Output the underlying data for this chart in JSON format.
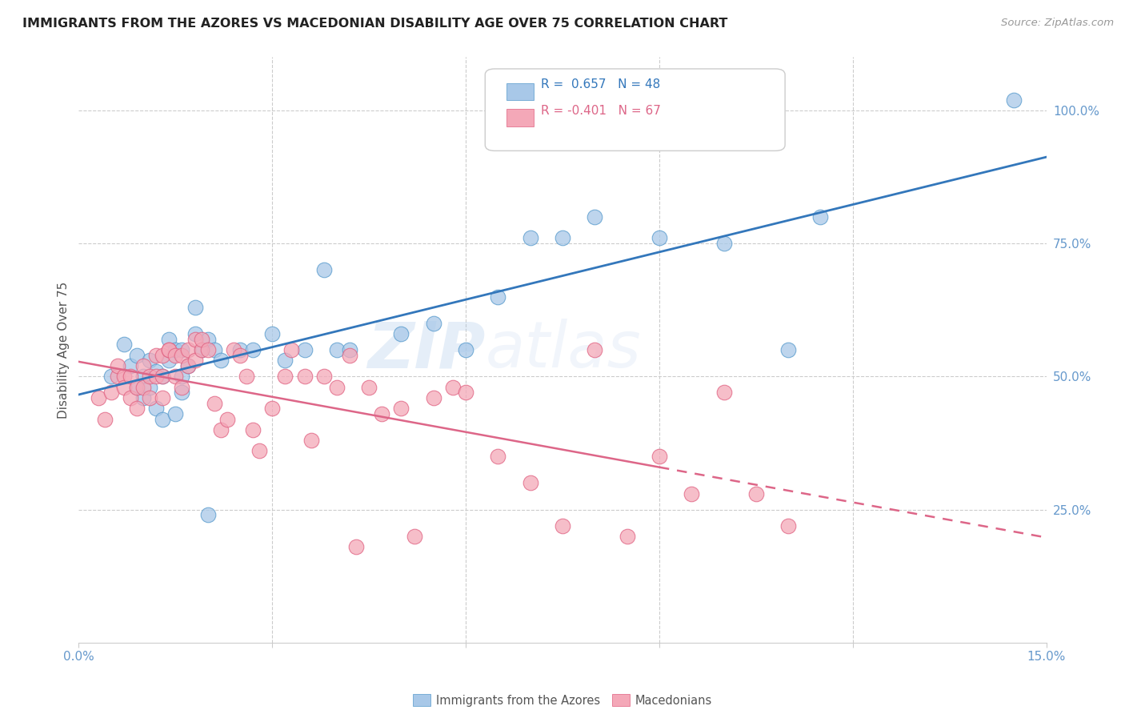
{
  "title": "IMMIGRANTS FROM THE AZORES VS MACEDONIAN DISABILITY AGE OVER 75 CORRELATION CHART",
  "source": "Source: ZipAtlas.com",
  "ylabel": "Disability Age Over 75",
  "y_ticks": [
    0.25,
    0.5,
    0.75,
    1.0
  ],
  "y_tick_labels": [
    "25.0%",
    "50.0%",
    "75.0%",
    "100.0%"
  ],
  "xlim": [
    0.0,
    0.15
  ],
  "ylim": [
    0.0,
    1.1
  ],
  "legend_r1": "R =  0.657   N = 48",
  "legend_r2": "R = -0.401   N = 67",
  "legend_label1": "Immigrants from the Azores",
  "legend_label2": "Macedonians",
  "blue_fill": "#a8c8e8",
  "blue_edge": "#5599cc",
  "pink_fill": "#f4a8b8",
  "pink_edge": "#e06080",
  "blue_line_color": "#3377bb",
  "pink_line_color": "#dd6688",
  "title_color": "#222222",
  "source_color": "#999999",
  "axis_label_color": "#555555",
  "tick_color": "#6699cc",
  "background_color": "#ffffff",
  "grid_color": "#cccccc",
  "watermark_zip": "ZIP",
  "watermark_atlas": "atlas",
  "azores_x": [
    0.005,
    0.007,
    0.008,
    0.009,
    0.009,
    0.01,
    0.01,
    0.011,
    0.011,
    0.012,
    0.012,
    0.013,
    0.013,
    0.014,
    0.014,
    0.015,
    0.015,
    0.016,
    0.016,
    0.016,
    0.017,
    0.018,
    0.018,
    0.019,
    0.02,
    0.02,
    0.021,
    0.022,
    0.025,
    0.027,
    0.03,
    0.032,
    0.035,
    0.038,
    0.04,
    0.042,
    0.05,
    0.055,
    0.06,
    0.065,
    0.07,
    0.075,
    0.08,
    0.09,
    0.1,
    0.11,
    0.115,
    0.145
  ],
  "azores_y": [
    0.5,
    0.56,
    0.52,
    0.48,
    0.54,
    0.5,
    0.46,
    0.53,
    0.48,
    0.51,
    0.44,
    0.5,
    0.42,
    0.57,
    0.53,
    0.55,
    0.43,
    0.55,
    0.5,
    0.47,
    0.52,
    0.63,
    0.58,
    0.55,
    0.57,
    0.24,
    0.55,
    0.53,
    0.55,
    0.55,
    0.58,
    0.53,
    0.55,
    0.7,
    0.55,
    0.55,
    0.58,
    0.6,
    0.55,
    0.65,
    0.76,
    0.76,
    0.8,
    0.76,
    0.75,
    0.55,
    0.8,
    1.02
  ],
  "macedonian_x": [
    0.003,
    0.004,
    0.005,
    0.006,
    0.006,
    0.007,
    0.007,
    0.008,
    0.008,
    0.009,
    0.009,
    0.01,
    0.01,
    0.011,
    0.011,
    0.012,
    0.012,
    0.013,
    0.013,
    0.013,
    0.014,
    0.014,
    0.015,
    0.015,
    0.016,
    0.016,
    0.017,
    0.017,
    0.018,
    0.018,
    0.019,
    0.019,
    0.02,
    0.021,
    0.022,
    0.023,
    0.024,
    0.025,
    0.026,
    0.027,
    0.028,
    0.03,
    0.032,
    0.033,
    0.035,
    0.036,
    0.038,
    0.04,
    0.042,
    0.043,
    0.045,
    0.047,
    0.05,
    0.052,
    0.055,
    0.058,
    0.06,
    0.065,
    0.07,
    0.075,
    0.08,
    0.085,
    0.09,
    0.095,
    0.1,
    0.105,
    0.11
  ],
  "macedonian_y": [
    0.46,
    0.42,
    0.47,
    0.5,
    0.52,
    0.5,
    0.48,
    0.5,
    0.46,
    0.48,
    0.44,
    0.52,
    0.48,
    0.5,
    0.46,
    0.54,
    0.5,
    0.54,
    0.5,
    0.46,
    0.55,
    0.55,
    0.54,
    0.5,
    0.54,
    0.48,
    0.55,
    0.52,
    0.57,
    0.53,
    0.55,
    0.57,
    0.55,
    0.45,
    0.4,
    0.42,
    0.55,
    0.54,
    0.5,
    0.4,
    0.36,
    0.44,
    0.5,
    0.55,
    0.5,
    0.38,
    0.5,
    0.48,
    0.54,
    0.18,
    0.48,
    0.43,
    0.44,
    0.2,
    0.46,
    0.48,
    0.47,
    0.35,
    0.3,
    0.22,
    0.55,
    0.2,
    0.35,
    0.28,
    0.47,
    0.28,
    0.22
  ]
}
